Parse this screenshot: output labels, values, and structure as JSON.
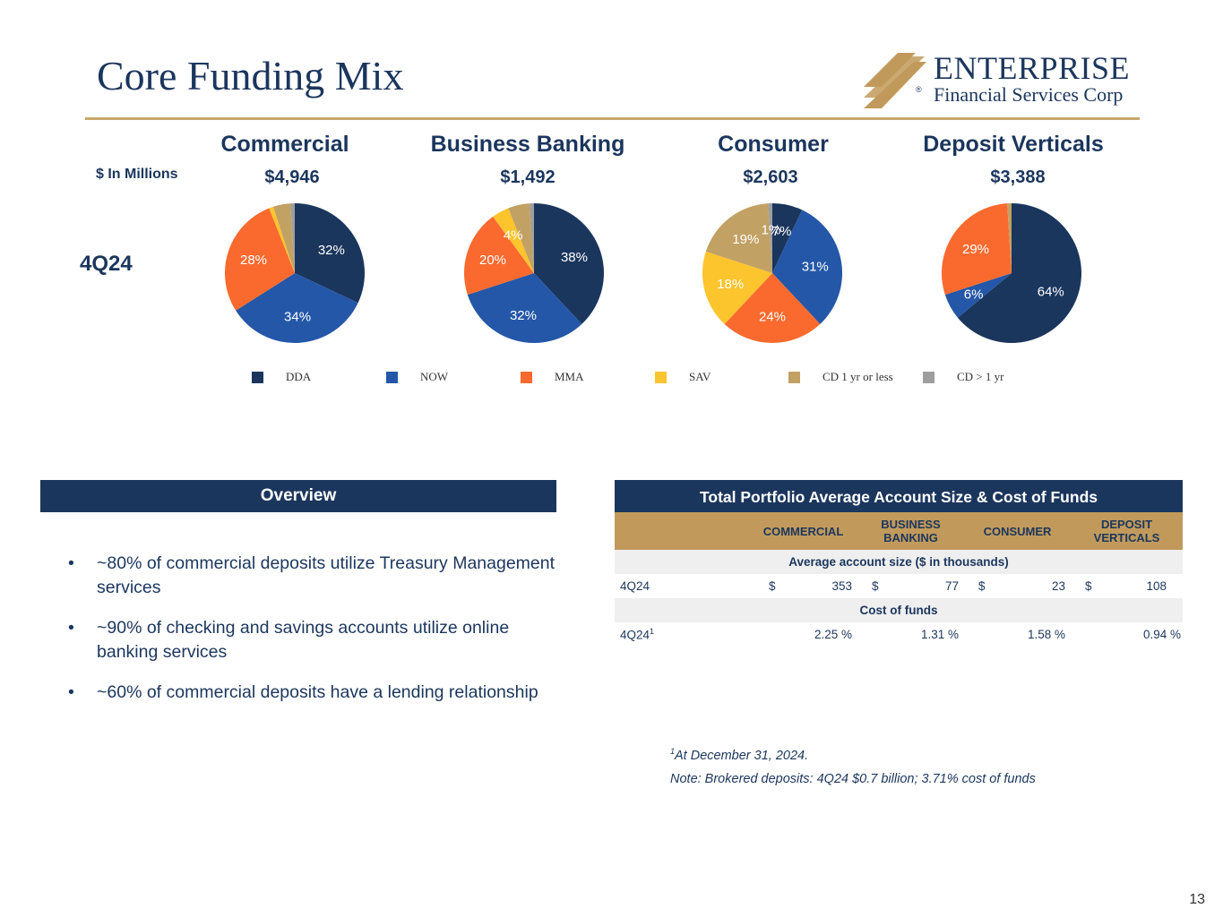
{
  "page": {
    "title": "Core Funding Mix",
    "page_number": "13"
  },
  "logo": {
    "name": "ENTERPRISE",
    "sub": "Financial Services Corp",
    "mark": "®"
  },
  "units_label": "$ In Millions",
  "period_label": "4Q24",
  "colors": {
    "DDA": "#1b365d",
    "NOW": "#2457a8",
    "MMA": "#fa6a2e",
    "SAV": "#fcc42d",
    "CD 1 yr or less": "#c2a164",
    "CD > 1 yr": "#9e9e9e"
  },
  "chart_data": [
    {
      "type": "pie",
      "title": "Commercial",
      "subtitle": "$4,946",
      "categories": [
        "DDA",
        "NOW",
        "MMA",
        "SAV",
        "CD 1 yr or less",
        "CD > 1 yr"
      ],
      "values": [
        32,
        34,
        28,
        1,
        4,
        1
      ],
      "labels": [
        "32%",
        "34%",
        "28%",
        "",
        "",
        ""
      ]
    },
    {
      "type": "pie",
      "title": "Business Banking",
      "subtitle": "$1,492",
      "categories": [
        "DDA",
        "NOW",
        "MMA",
        "SAV",
        "CD 1 yr or less",
        "CD > 1 yr"
      ],
      "values": [
        38,
        32,
        20,
        4,
        5,
        1
      ],
      "labels": [
        "38%",
        "32%",
        "20%",
        "4%",
        "",
        ""
      ]
    },
    {
      "type": "pie",
      "title": "Consumer",
      "subtitle": "$2,603",
      "categories": [
        "DDA",
        "NOW",
        "MMA",
        "SAV",
        "CD 1 yr or less",
        "CD > 1 yr"
      ],
      "values": [
        7,
        31,
        24,
        18,
        19,
        1
      ],
      "labels": [
        "7%",
        "31%",
        "24%",
        "18%",
        "19%",
        "1%"
      ]
    },
    {
      "type": "pie",
      "title": "Deposit Verticals",
      "subtitle": "$3,388",
      "categories": [
        "DDA",
        "NOW",
        "MMA",
        "SAV",
        "CD 1 yr or less",
        "CD > 1 yr"
      ],
      "values": [
        64,
        6,
        29,
        0,
        1,
        0
      ],
      "labels": [
        "64%",
        "6%",
        "29%",
        "",
        "",
        ""
      ]
    }
  ],
  "legend": [
    "DDA",
    "NOW",
    "MMA",
    "SAV",
    "CD 1 yr or less",
    "CD > 1 yr"
  ],
  "overview": {
    "heading": "Overview",
    "bullets": [
      "~80% of commercial deposits utilize Treasury Management services",
      "~90% of checking and savings accounts utilize online banking services",
      "~60% of commercial deposits have a lending relationship"
    ]
  },
  "table": {
    "heading": "Total Portfolio Average Account Size & Cost of Funds",
    "columns": [
      "COMMERCIAL",
      "BUSINESS BANKING",
      "CONSUMER",
      "DEPOSIT VERTICALS"
    ],
    "section1": "Average account size ($ in thousands)",
    "row1": {
      "label": "4Q24",
      "currency": "$",
      "values": [
        "353",
        "77",
        "23",
        "108"
      ]
    },
    "section2": "Cost of funds",
    "row2": {
      "label": "4Q24",
      "sup": "1",
      "values": [
        "2.25 %",
        "1.31 %",
        "1.58 %",
        "0.94 %"
      ]
    }
  },
  "footnotes": {
    "fn1_sup": "1",
    "fn1": "At December 31, 2024.",
    "note": "Note: Brokered deposits: 4Q24 $0.7 billion; 3.71% cost of funds"
  }
}
